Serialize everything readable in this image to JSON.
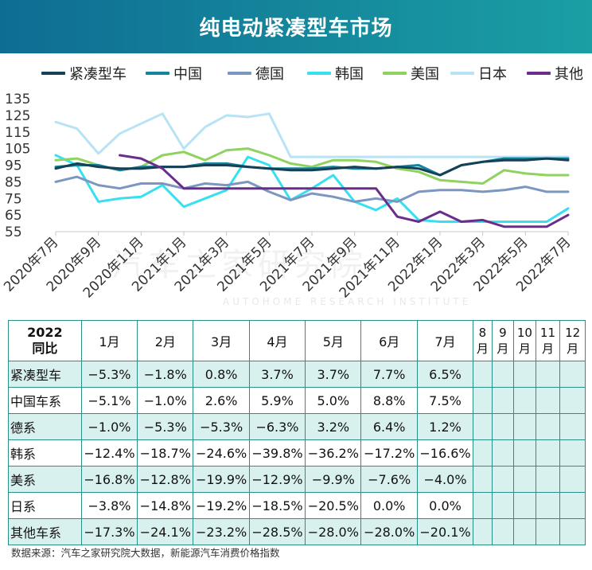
{
  "title": "纯电动紧凑型车市场",
  "chart_data": {
    "type": "line",
    "title": "",
    "ylim": [
      55,
      135
    ],
    "yticks": [
      55,
      65,
      75,
      85,
      95,
      105,
      115,
      125,
      135
    ],
    "x_tick_labels": [
      "2020年7月",
      "2020年9月",
      "2020年11月",
      "2021年1月",
      "2021年3月",
      "2021年5月",
      "2021年7月",
      "2021年9月",
      "2021年11月",
      "2022年1月",
      "2022年3月",
      "2022年5月",
      "2022年7月"
    ],
    "x_months": [
      "2020-07",
      "2020-08",
      "2020-09",
      "2020-10",
      "2020-11",
      "2020-12",
      "2021-01",
      "2021-02",
      "2021-03",
      "2021-04",
      "2021-05",
      "2021-06",
      "2021-07",
      "2021-08",
      "2021-09",
      "2021-10",
      "2021-11",
      "2021-12",
      "2022-01",
      "2022-02",
      "2022-03",
      "2022-04",
      "2022-05",
      "2022-06",
      "2022-07"
    ],
    "series": [
      {
        "name": "紧凑型车",
        "color": "#173f55",
        "values": [
          93,
          96,
          94,
          93,
          93,
          94,
          94,
          95,
          95,
          94,
          93,
          92,
          92,
          93,
          94,
          93,
          94,
          93,
          89,
          95,
          97,
          98,
          98,
          99,
          98
        ]
      },
      {
        "name": "中国",
        "color": "#11869b",
        "values": [
          94,
          95,
          95,
          92,
          94,
          94,
          94,
          96,
          96,
          94,
          93,
          93,
          93,
          94,
          93,
          93,
          94,
          95,
          89,
          95,
          97,
          99,
          99,
          99,
          99
        ]
      },
      {
        "name": "德国",
        "color": "#7b96c0",
        "values": [
          85,
          88,
          83,
          81,
          84,
          84,
          81,
          84,
          83,
          85,
          79,
          74,
          78,
          76,
          73,
          75,
          73,
          79,
          80,
          80,
          79,
          80,
          82,
          79,
          79
        ]
      },
      {
        "name": "韩国",
        "color": "#37e0f0",
        "values": [
          101,
          95,
          73,
          75,
          76,
          83,
          70,
          75,
          80,
          100,
          95,
          74,
          81,
          89,
          73,
          68,
          75,
          62,
          61,
          61,
          61,
          61,
          61,
          61,
          69
        ]
      },
      {
        "name": "美国",
        "color": "#8fd35e",
        "values": [
          98,
          99,
          95,
          92,
          94,
          101,
          103,
          98,
          104,
          105,
          101,
          96,
          94,
          98,
          98,
          97,
          93,
          91,
          86,
          85,
          84,
          92,
          90,
          89,
          89
        ]
      },
      {
        "name": "日本",
        "color": "#b7e3f5",
        "values": [
          121,
          117,
          102,
          114,
          120,
          126,
          105,
          118,
          125,
          124,
          126,
          100,
          100,
          100,
          100,
          100,
          100,
          100,
          100,
          100,
          100,
          100,
          100,
          100,
          100
        ]
      },
      {
        "name": "其他",
        "color": "#6a2d8c",
        "values": [
          null,
          null,
          null,
          101,
          99,
          93,
          81,
          81,
          81,
          81,
          81,
          81,
          81,
          81,
          81,
          81,
          64,
          61,
          67,
          61,
          62,
          58,
          58,
          58,
          65
        ]
      }
    ]
  },
  "table": {
    "corner_lines": [
      "2022",
      "同比"
    ],
    "months": [
      "1月",
      "2月",
      "3月",
      "4月",
      "5月",
      "6月",
      "7月",
      "8月",
      "9月",
      "10月",
      "11月",
      "12月"
    ],
    "narrow_month_lines": [
      [
        "8",
        "月"
      ],
      [
        "9",
        "月"
      ],
      [
        "10",
        "月"
      ],
      [
        "11",
        "月"
      ],
      [
        "12",
        "月"
      ]
    ],
    "rows": [
      {
        "label": "紧凑型车",
        "values": [
          "−5.3%",
          "−1.8%",
          "0.8%",
          "3.7%",
          "3.7%",
          "7.7%",
          "6.5%"
        ]
      },
      {
        "label": "中国车系",
        "values": [
          "−5.1%",
          "−1.0%",
          "2.6%",
          "5.9%",
          "5.0%",
          "8.8%",
          "7.5%"
        ]
      },
      {
        "label": "德系",
        "values": [
          "−1.0%",
          "−5.3%",
          "−5.3%",
          "−6.3%",
          "3.2%",
          "6.4%",
          "1.2%"
        ]
      },
      {
        "label": "韩系",
        "values": [
          "−12.4%",
          "−18.7%",
          "−24.6%",
          "−39.8%",
          "−36.2%",
          "−17.2%",
          "−16.6%"
        ]
      },
      {
        "label": "美系",
        "values": [
          "−16.8%",
          "−12.8%",
          "−19.9%",
          "−12.9%",
          "−9.9%",
          "−7.6%",
          "−4.0%"
        ]
      },
      {
        "label": "日系",
        "values": [
          "−3.8%",
          "−14.8%",
          "−19.2%",
          "−18.5%",
          "−20.5%",
          "0.0%",
          "0.0%"
        ]
      },
      {
        "label": "其他车系",
        "values": [
          "−17.3%",
          "−24.1%",
          "−23.2%",
          "−28.5%",
          "−28.0%",
          "−28.0%",
          "−20.1%"
        ]
      }
    ]
  },
  "watermark": {
    "main": "汽车之家研究院",
    "sub": "AUTOHOME RESEARCH INSTITUTE"
  },
  "source": "数据来源：汽车之家研究院大数据，新能源汽车消费价格指数"
}
